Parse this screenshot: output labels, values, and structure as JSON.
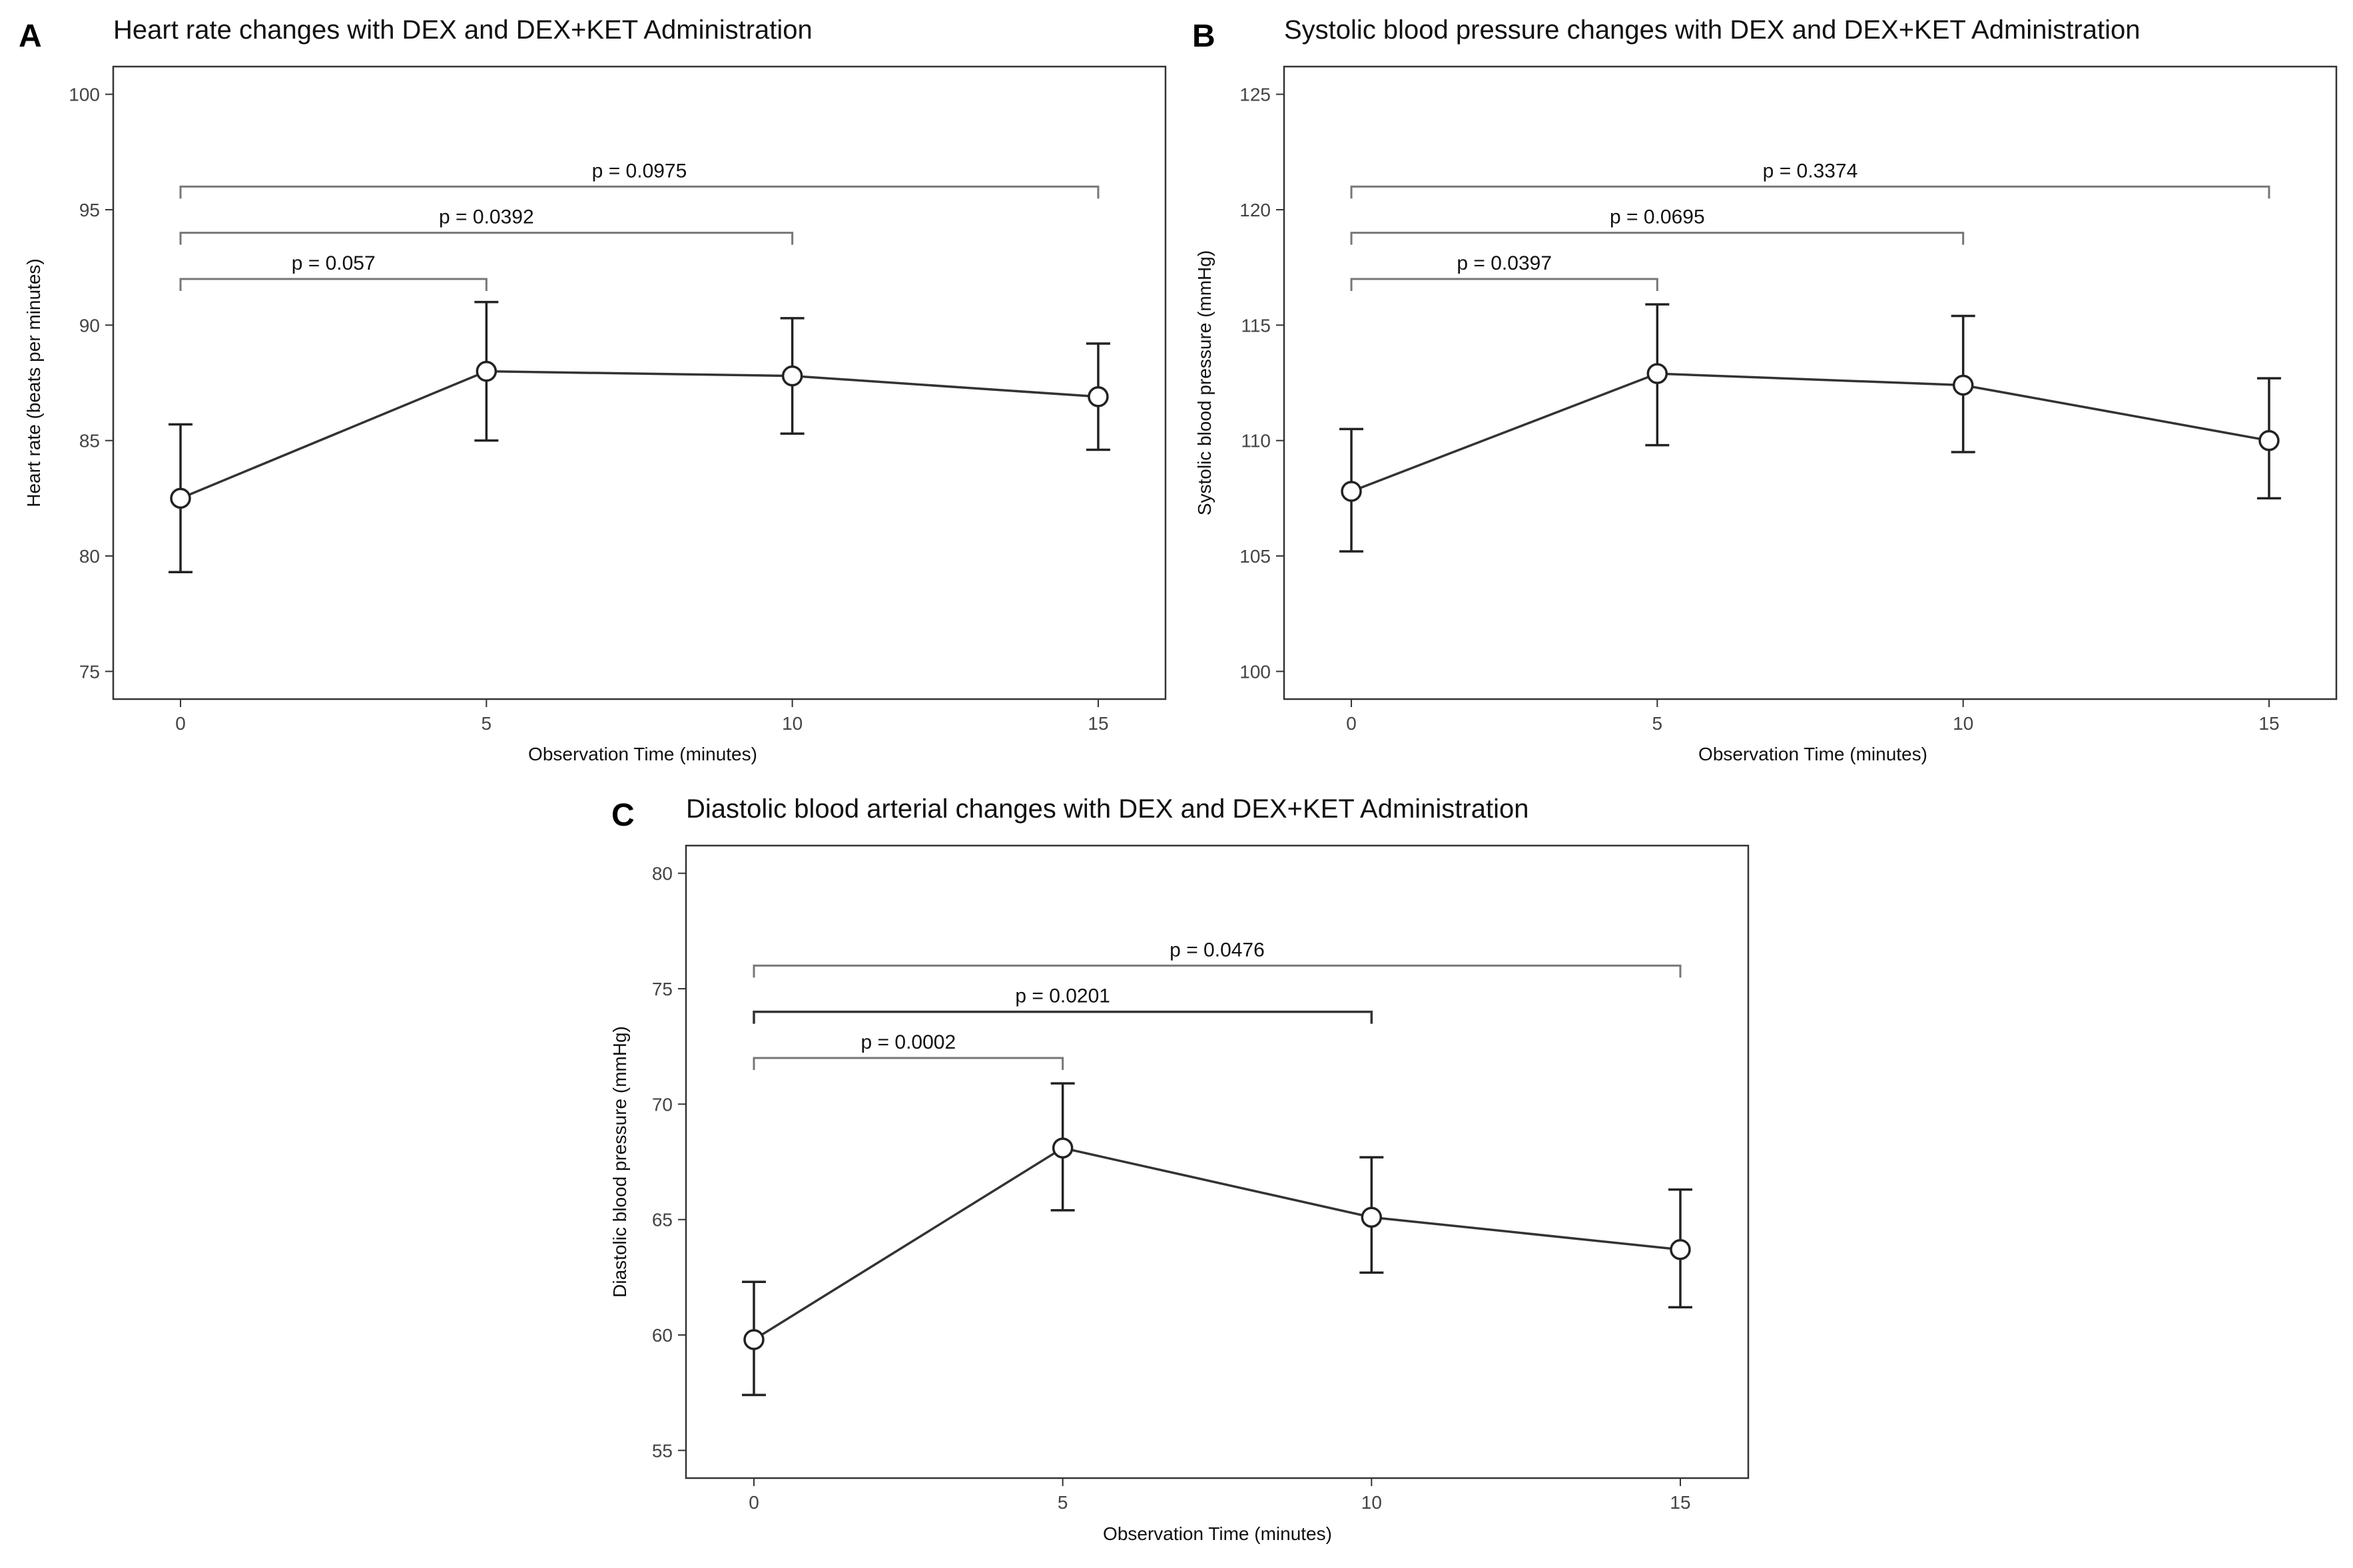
{
  "chart_data": [
    {
      "id": "A",
      "type": "line",
      "panel_label": "A",
      "title": "Heart rate changes with DEX and DEX+KET Administration",
      "xlabel": "Observation Time (minutes)",
      "ylabel": "Heart rate (beats per minutes)",
      "x": [
        0,
        5,
        10,
        15
      ],
      "y": [
        82.5,
        88.0,
        87.8,
        86.9
      ],
      "y_lower": [
        79.3,
        85.0,
        85.3,
        84.6
      ],
      "y_upper": [
        85.7,
        91.0,
        90.3,
        89.2
      ],
      "xlim": [
        -1.1,
        16.1
      ],
      "ylim": [
        73.8,
        101.2
      ],
      "xticks": [
        0,
        5,
        10,
        15
      ],
      "yticks": [
        75,
        80,
        85,
        90,
        95,
        100
      ],
      "grid": false,
      "comparisons": [
        {
          "x1": 0,
          "x2": 5,
          "y": 92,
          "label": "p = 0.057",
          "dark": false
        },
        {
          "x1": 0,
          "x2": 10,
          "y": 94,
          "label": "p = 0.0392",
          "dark": false
        },
        {
          "x1": 0,
          "x2": 15,
          "y": 96,
          "label": "p = 0.0975",
          "dark": false
        }
      ]
    },
    {
      "id": "B",
      "type": "line",
      "panel_label": "B",
      "title": "Systolic  blood pressure changes with DEX and DEX+KET Administration",
      "xlabel": "Observation Time (minutes)",
      "ylabel": "Systolic blood pressure (mmHg)",
      "x": [
        0,
        5,
        10,
        15
      ],
      "y": [
        107.8,
        112.9,
        112.4,
        110.0
      ],
      "y_lower": [
        105.2,
        109.8,
        109.5,
        107.5
      ],
      "y_upper": [
        110.5,
        115.9,
        115.4,
        112.7
      ],
      "xlim": [
        -1.1,
        16.1
      ],
      "ylim": [
        98.8,
        126.2
      ],
      "xticks": [
        0,
        5,
        10,
        15
      ],
      "yticks": [
        100,
        105,
        110,
        115,
        120,
        125
      ],
      "grid": false,
      "comparisons": [
        {
          "x1": 0,
          "x2": 5,
          "y": 117,
          "label": "p = 0.0397",
          "dark": false
        },
        {
          "x1": 0,
          "x2": 10,
          "y": 119,
          "label": "p = 0.0695",
          "dark": false
        },
        {
          "x1": 0,
          "x2": 15,
          "y": 121,
          "label": "p = 0.3374",
          "dark": false
        }
      ]
    },
    {
      "id": "C",
      "type": "line",
      "panel_label": "C",
      "title": "Diastolic blood arterial changes with DEX and DEX+KET Administration",
      "xlabel": "Observation Time (minutes)",
      "ylabel": "Diastolic blood pressure (mmHg)",
      "x": [
        0,
        5,
        10,
        15
      ],
      "y": [
        59.8,
        68.1,
        65.1,
        63.7
      ],
      "y_lower": [
        57.4,
        65.4,
        62.7,
        61.2
      ],
      "y_upper": [
        62.3,
        70.9,
        67.7,
        66.3
      ],
      "xlim": [
        -1.1,
        16.1
      ],
      "ylim": [
        53.8,
        81.2
      ],
      "xticks": [
        0,
        5,
        10,
        15
      ],
      "yticks": [
        55,
        60,
        65,
        70,
        75,
        80
      ],
      "grid": false,
      "comparisons": [
        {
          "x1": 0,
          "x2": 5,
          "y": 72,
          "label": "p = 0.0002",
          "dark": false
        },
        {
          "x1": 0,
          "x2": 10,
          "y": 74,
          "label": "p = 0.0201",
          "dark": true
        },
        {
          "x1": 0,
          "x2": 15,
          "y": 76,
          "label": "p = 0.0476",
          "dark": false
        }
      ]
    }
  ]
}
